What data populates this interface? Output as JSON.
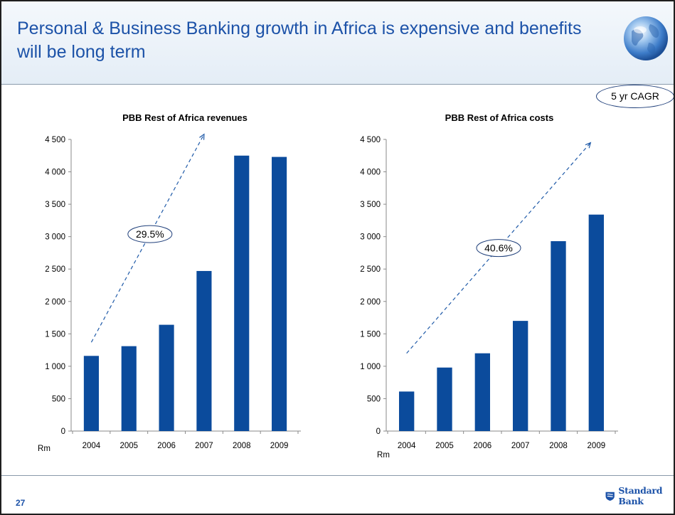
{
  "slide": {
    "title": "Personal & Business Banking growth in Africa is expensive and benefits will be long term",
    "cagr_label": "5 yr CAGR",
    "page_number": "27",
    "brand_name": "Standard Bank",
    "colors": {
      "title": "#1c52a8",
      "bar": "#0b4b9c",
      "trend": "#1f5aa8",
      "header_bg": "#e4edf6"
    },
    "icons": [
      "globe-icon",
      "shield-logo-icon"
    ]
  },
  "chart_data": [
    {
      "type": "bar",
      "title": "PBB Rest of Africa revenues",
      "categories": [
        "2004",
        "2005",
        "2006",
        "2007",
        "2008",
        "2009"
      ],
      "values": [
        1160,
        1310,
        1640,
        2470,
        4250,
        4230
      ],
      "ylim": [
        0,
        4500
      ],
      "yticks": [
        0,
        500,
        1000,
        1500,
        2000,
        2500,
        3000,
        3500,
        4000,
        4500
      ],
      "ytick_labels": [
        "0",
        "500",
        "1 000",
        "1 500",
        "2 000",
        "2 500",
        "3 000",
        "3 500",
        "4 000",
        "4 500"
      ],
      "unit_label": "Rm",
      "annotation": "29.5%",
      "trend_arrow": {
        "start": {
          "x": "2004",
          "y": 1370
        },
        "end": {
          "x": "2007",
          "y": 4580
        }
      },
      "grid": false,
      "legend": "none"
    },
    {
      "type": "bar",
      "title": "PBB Rest of Africa costs",
      "categories": [
        "2004",
        "2005",
        "2006",
        "2007",
        "2008",
        "2009"
      ],
      "values": [
        610,
        980,
        1200,
        1700,
        2930,
        3340
      ],
      "ylim": [
        0,
        4500
      ],
      "yticks": [
        0,
        500,
        1000,
        1500,
        2000,
        2500,
        3000,
        3500,
        4000,
        4500
      ],
      "ytick_labels": [
        "0",
        "500",
        "1 000",
        "1 500",
        "2 000",
        "2 500",
        "3 000",
        "3 500",
        "4 000",
        "4 500"
      ],
      "unit_label": "Rm",
      "annotation": "40.6%",
      "trend_arrow": {
        "start": {
          "x": "2004",
          "y": 1200
        },
        "end": {
          "x": "2009",
          "y": 4450
        }
      },
      "grid": false,
      "legend": "none"
    }
  ]
}
